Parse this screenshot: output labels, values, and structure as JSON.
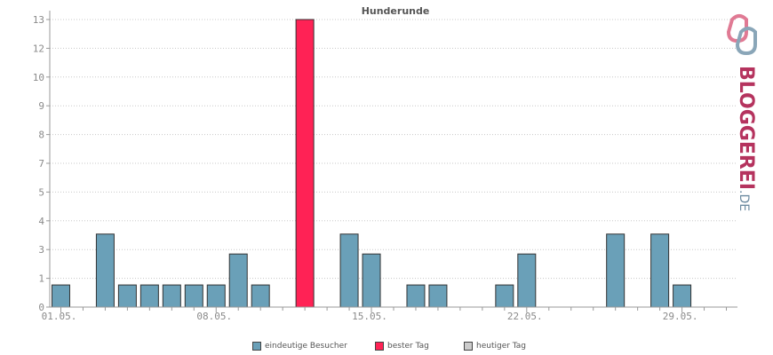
{
  "chart_data": {
    "type": "bar",
    "title": "Hunderunde",
    "yticks": [
      "0",
      "1",
      "3",
      "4",
      "5",
      "7",
      "8",
      "9",
      "10",
      "12",
      "13"
    ],
    "ylim": [
      0,
      13
    ],
    "xticks": [
      {
        "day": 1,
        "label": "01.05."
      },
      {
        "day": 8,
        "label": "08.05."
      },
      {
        "day": 15,
        "label": "15.05."
      },
      {
        "day": 22,
        "label": "22.05."
      },
      {
        "day": 29,
        "label": "29.05."
      }
    ],
    "days": [
      1,
      2,
      3,
      4,
      5,
      6,
      7,
      8,
      9,
      10,
      11,
      12,
      13,
      14,
      15,
      16,
      17,
      18,
      19,
      20,
      21,
      22,
      23,
      24,
      25,
      26,
      27,
      28,
      29,
      30,
      31
    ],
    "series": [
      {
        "name": "eindeutige Besucher",
        "color": "#6aa0b8",
        "values": [
          1,
          0,
          3.3,
          1,
          1,
          1,
          1,
          1,
          2.4,
          1,
          0,
          0,
          0,
          3.3,
          2.4,
          0,
          1,
          1,
          0,
          0,
          1,
          2.4,
          0,
          0,
          0,
          3.3,
          0,
          3.3,
          1,
          0,
          0
        ]
      },
      {
        "name": "bester Tag",
        "color": "#ff2255",
        "day": 12,
        "value": 13
      },
      {
        "name": "heutiger Tag",
        "color": "#cccccc"
      }
    ],
    "grid": true,
    "legend_position": "bottom"
  },
  "logo": {
    "text": "BLOGGEREI",
    "suffix": ".DE",
    "colors": {
      "pink": "#b5335e",
      "blue": "#6b8aa0"
    }
  }
}
